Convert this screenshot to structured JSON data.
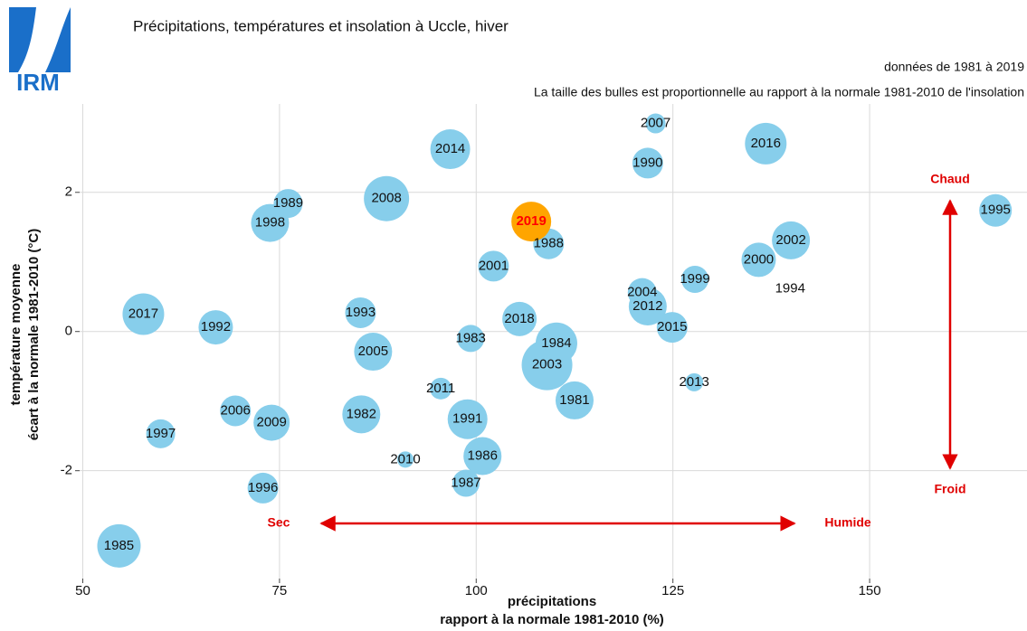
{
  "logo_text": "IRM",
  "chart_data": {
    "type": "scatter",
    "title": "Précipitations, températures et insolation à Uccle, hiver",
    "subtitle": [
      "données de 1981 à 2019",
      "La taille des bulles est proportionnelle au rapport à la normale 1981-2010 de l'insolation"
    ],
    "xlabel": [
      "précipitations",
      "rapport à la normale 1981-2010 (%)"
    ],
    "ylabel": [
      "température moyenne",
      "écart à la normale 1981-2010 (°C)"
    ],
    "xlim": [
      49.6,
      170
    ],
    "xticks": [
      50,
      75,
      100,
      125,
      150
    ],
    "ylim": [
      -3.55,
      3.27
    ],
    "yticks": [
      -2,
      0,
      2
    ],
    "grid": true,
    "annotations": {
      "left": "Sec",
      "right": "Humide",
      "top": "Chaud",
      "bottom": "Froid"
    },
    "series": [
      {
        "color": "#87ceeb",
        "label_color": "#111111",
        "labels": [
          "1985",
          "2017",
          "1997",
          "1992",
          "2006",
          "2009",
          "1996",
          "1998",
          "1989",
          "2008",
          "1993",
          "2005",
          "1982",
          "2010",
          "2011",
          "2014",
          "1983",
          "1991",
          "1987",
          "1986",
          "2001",
          "2018",
          "1988",
          "1984",
          "2003",
          "1981",
          "2007",
          "1990",
          "2016",
          "2004",
          "2012",
          "2015",
          "2013",
          "1999",
          "2000",
          "2002",
          "1994",
          "1995"
        ],
        "x": [
          54.6,
          57.7,
          59.9,
          66.9,
          69.4,
          74.0,
          72.9,
          73.8,
          76.1,
          88.6,
          85.3,
          86.9,
          85.4,
          91.0,
          95.5,
          96.7,
          99.3,
          98.9,
          98.7,
          100.8,
          102.2,
          105.5,
          109.2,
          110.2,
          109.0,
          112.5,
          122.8,
          121.8,
          136.8,
          121.1,
          121.8,
          124.9,
          127.7,
          127.8,
          135.9,
          140.0,
          139.9,
          166.0
        ],
        "values": [
          -3.08,
          0.25,
          -1.47,
          0.06,
          -1.14,
          -1.31,
          -2.25,
          1.56,
          1.84,
          1.91,
          0.27,
          -0.29,
          -1.19,
          -1.84,
          -0.82,
          2.62,
          -0.1,
          -1.26,
          -2.18,
          -1.79,
          0.94,
          0.18,
          1.26,
          -0.17,
          -0.48,
          -0.99,
          2.99,
          2.42,
          2.7,
          0.56,
          0.36,
          0.06,
          -0.73,
          0.75,
          1.03,
          1.31,
          0.61,
          1.74
        ],
        "sizes": [
          120,
          115,
          80,
          95,
          85,
          100,
          85,
          105,
          80,
          125,
          85,
          105,
          105,
          45,
          60,
          110,
          75,
          110,
          75,
          105,
          85,
          95,
          85,
          115,
          140,
          105,
          55,
          85,
          115,
          80,
          105,
          85,
          50,
          75,
          95,
          105,
          0,
          90
        ]
      },
      {
        "color": "#ffa500",
        "label_color": "#ff0000",
        "labels": [
          "2019"
        ],
        "x": [
          107.0
        ],
        "values": [
          1.58
        ],
        "sizes": [
          110
        ]
      }
    ]
  }
}
